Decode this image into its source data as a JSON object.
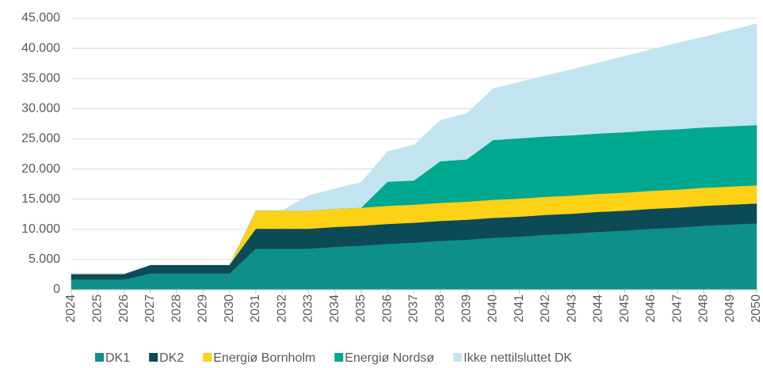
{
  "chart_data": {
    "type": "stacked_area",
    "categories": [
      "2024",
      "2025",
      "2026",
      "2027",
      "2028",
      "2029",
      "2030",
      "2031",
      "2032",
      "2033",
      "2034",
      "2035",
      "2036",
      "2037",
      "2038",
      "2039",
      "2040",
      "2041",
      "2042",
      "2043",
      "2044",
      "2045",
      "2046",
      "2047",
      "2048",
      "2049",
      "2050"
    ],
    "series": [
      {
        "name": "DK1",
        "color": "#0f8f8a",
        "values": [
          1700,
          1700,
          1700,
          2700,
          2700,
          2700,
          2700,
          6800,
          6800,
          6800,
          7100,
          7300,
          7600,
          7800,
          8100,
          8300,
          8600,
          8800,
          9100,
          9300,
          9600,
          9800,
          10100,
          10300,
          10600,
          10800,
          11000
        ]
      },
      {
        "name": "DK2",
        "color": "#0c4a55",
        "values": [
          900,
          900,
          900,
          1400,
          1400,
          1400,
          1400,
          3300,
          3300,
          3300,
          3300,
          3300,
          3300,
          3300,
          3300,
          3300,
          3300,
          3300,
          3300,
          3300,
          3300,
          3300,
          3300,
          3300,
          3300,
          3300,
          3300
        ]
      },
      {
        "name": "Energiø Bornholm",
        "color": "#fcd116",
        "values": [
          0,
          0,
          0,
          0,
          0,
          0,
          0,
          3000,
          3000,
          3000,
          3000,
          3000,
          3000,
          3000,
          3000,
          3000,
          3000,
          3000,
          3000,
          3000,
          3000,
          3000,
          3000,
          3000,
          3000,
          3000,
          3000
        ]
      },
      {
        "name": "Energiø Nordsø",
        "color": "#00a88f",
        "values": [
          0,
          0,
          0,
          0,
          0,
          0,
          0,
          0,
          0,
          0,
          0,
          0,
          4000,
          4000,
          6900,
          7000,
          9900,
          10000,
          10000,
          10000,
          10000,
          10000,
          10000,
          10000,
          10000,
          10000,
          10000
        ]
      },
      {
        "name": "Ikke nettilsluttet DK",
        "color": "#c2e4f0",
        "values": [
          0,
          0,
          0,
          0,
          0,
          0,
          0,
          0,
          0,
          2500,
          3300,
          4200,
          5000,
          5900,
          6800,
          7600,
          8500,
          9300,
          10100,
          10900,
          11700,
          12600,
          13400,
          14300,
          15000,
          15900,
          16800
        ]
      }
    ],
    "ylim": [
      0,
      45000
    ],
    "yticks": [
      0,
      {
        "value": 5000,
        "label": "5.000"
      },
      {
        "value": 10000,
        "label": "10.000"
      },
      {
        "value": 15000,
        "label": "15.000"
      },
      {
        "value": 20000,
        "label": "20.000"
      },
      {
        "value": 25000,
        "label": "25.000"
      },
      {
        "value": 30000,
        "label": "30.000"
      },
      {
        "value": 35000,
        "label": "35.000"
      },
      {
        "value": 40000,
        "label": "40.000"
      },
      {
        "value": 45000,
        "label": "45.000"
      }
    ],
    "grid": true,
    "legend": "bottom"
  }
}
